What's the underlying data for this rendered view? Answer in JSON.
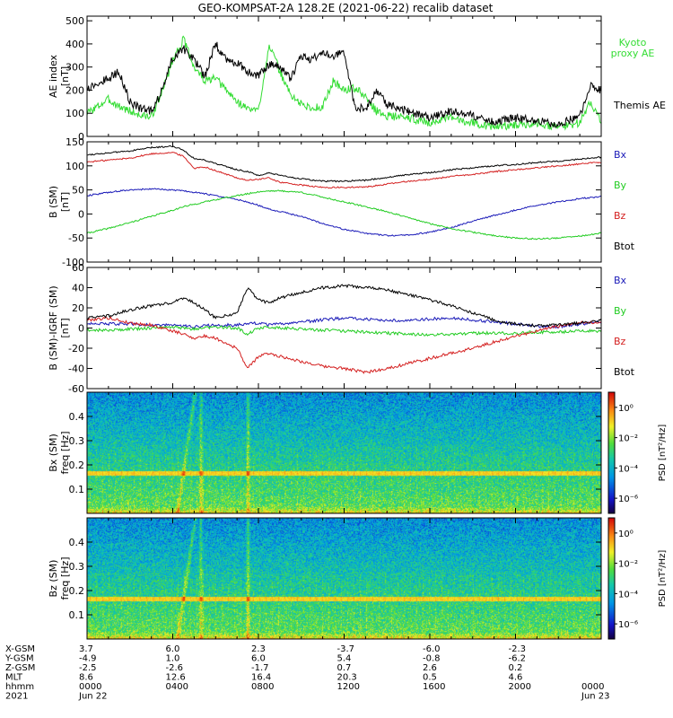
{
  "title": "GEO-KOMPSAT-2A 128.2E (2021-06-22) recalib dataset",
  "colors": {
    "black": "#000000",
    "red": "#d42020",
    "green": "#22cc22",
    "blue": "#1a1ab8",
    "kyoto_green": "#33dd33"
  },
  "chart_data": [
    {
      "type": "line",
      "panel": "ae",
      "ylabel": "AE index",
      "yunit": "[nT]",
      "ylim": [
        0,
        520
      ],
      "yticks": [
        "0",
        "100",
        "200",
        "300",
        "400",
        "500"
      ],
      "ytick_values": [
        0,
        100,
        200,
        300,
        400,
        500
      ],
      "x_hours": [
        0,
        1,
        1.5,
        2,
        2.5,
        3,
        3.5,
        4,
        4.5,
        5,
        5.5,
        6,
        6.5,
        7,
        7.5,
        8,
        8.5,
        9,
        9.5,
        10,
        10.5,
        11,
        11.5,
        12,
        12.5,
        13,
        13.5,
        14,
        15,
        16,
        17,
        18,
        19,
        20,
        21,
        22,
        23,
        23.5,
        24
      ],
      "series": [
        {
          "name": "Kyoto proxy AE",
          "color_key": "kyoto_green",
          "values": [
            100,
            160,
            130,
            110,
            90,
            85,
            190,
            330,
            420,
            300,
            240,
            250,
            200,
            150,
            120,
            110,
            400,
            280,
            180,
            140,
            120,
            130,
            240,
            200,
            210,
            170,
            110,
            90,
            80,
            60,
            80,
            60,
            40,
            50,
            60,
            40,
            60,
            150,
            70
          ]
        },
        {
          "name": "Themis AE",
          "color_key": "black",
          "values": [
            210,
            250,
            280,
            150,
            120,
            110,
            200,
            340,
            380,
            330,
            260,
            400,
            330,
            320,
            280,
            260,
            310,
            300,
            250,
            350,
            330,
            370,
            350,
            360,
            130,
            120,
            200,
            140,
            110,
            80,
            110,
            90,
            60,
            80,
            70,
            50,
            90,
            220,
            200
          ]
        }
      ]
    },
    {
      "type": "line",
      "panel": "b",
      "ylabel": "B (SM)",
      "yunit": "[nT]",
      "ylim": [
        -100,
        150
      ],
      "yticks": [
        "-100",
        "-50",
        "0",
        "50",
        "100",
        "150"
      ],
      "ytick_values": [
        -100,
        -50,
        0,
        50,
        100,
        150
      ],
      "x_hours": [
        0,
        1,
        2,
        3,
        4,
        4.5,
        5,
        5.5,
        6,
        7,
        7.5,
        8,
        8.5,
        9,
        10,
        11,
        12,
        13,
        14,
        15,
        16,
        17,
        18,
        19,
        20,
        21,
        22,
        23,
        24
      ],
      "series": [
        {
          "name": "Bx",
          "color_key": "blue",
          "values": [
            38,
            45,
            50,
            52,
            50,
            48,
            45,
            42,
            38,
            30,
            25,
            18,
            10,
            5,
            -5,
            -20,
            -32,
            -40,
            -45,
            -44,
            -38,
            -28,
            -15,
            -3,
            8,
            18,
            25,
            32,
            36
          ]
        },
        {
          "name": "By",
          "color_key": "green",
          "values": [
            -40,
            -30,
            -18,
            -5,
            8,
            15,
            20,
            25,
            30,
            38,
            42,
            46,
            48,
            48,
            45,
            35,
            25,
            15,
            5,
            -8,
            -20,
            -30,
            -38,
            -45,
            -50,
            -52,
            -50,
            -46,
            -40
          ]
        },
        {
          "name": "Bz",
          "color_key": "red",
          "values": [
            108,
            112,
            116,
            125,
            128,
            120,
            95,
            98,
            90,
            75,
            70,
            72,
            75,
            66,
            60,
            55,
            55,
            56,
            62,
            68,
            72,
            78,
            82,
            88,
            92,
            96,
            100,
            104,
            108
          ]
        },
        {
          "name": "Btot",
          "color_key": "black",
          "values": [
            123,
            127,
            131,
            138,
            141,
            133,
            115,
            112,
            105,
            92,
            88,
            80,
            85,
            80,
            73,
            68,
            68,
            70,
            76,
            82,
            86,
            92,
            96,
            100,
            103,
            107,
            110,
            114,
            118
          ]
        }
      ]
    },
    {
      "type": "line",
      "panel": "db",
      "ylabel": "B (SM)-IGRF (SM)",
      "yunit": "[nT]",
      "ylim": [
        -60,
        60
      ],
      "yticks": [
        "-60",
        "-40",
        "-20",
        "0",
        "20",
        "40",
        "60"
      ],
      "ytick_values": [
        -60,
        -40,
        -20,
        0,
        20,
        40,
        60
      ],
      "x_hours": [
        0,
        1,
        2,
        3,
        4,
        4.5,
        5,
        5.5,
        6,
        7,
        7.5,
        8,
        8.5,
        9,
        10,
        11,
        12,
        13,
        14,
        15,
        16,
        17,
        18,
        19,
        20,
        21,
        22,
        23,
        24
      ],
      "series": [
        {
          "name": "Bx",
          "color_key": "blue",
          "values": [
            5,
            4,
            4,
            3,
            3,
            2,
            1,
            2,
            3,
            3,
            4,
            5,
            3,
            4,
            6,
            8,
            10,
            9,
            7,
            8,
            9,
            10,
            8,
            6,
            4,
            2,
            1,
            4,
            6
          ]
        },
        {
          "name": "By",
          "color_key": "green",
          "values": [
            -2,
            -2,
            -1,
            0,
            1,
            0,
            -1,
            0,
            1,
            0,
            -6,
            0,
            1,
            0,
            -1,
            -2,
            -3,
            -4,
            -5,
            -6,
            -7,
            -6,
            -5,
            -5,
            -5,
            -4,
            -4,
            -3,
            -3
          ]
        },
        {
          "name": "Bz",
          "color_key": "red",
          "values": [
            8,
            10,
            5,
            3,
            -3,
            -6,
            -10,
            -8,
            -10,
            -20,
            -40,
            -28,
            -25,
            -28,
            -33,
            -38,
            -40,
            -44,
            -40,
            -35,
            -30,
            -25,
            -20,
            -14,
            -8,
            -3,
            2,
            5,
            6
          ]
        },
        {
          "name": "Btot",
          "color_key": "black",
          "values": [
            10,
            12,
            18,
            22,
            25,
            30,
            25,
            18,
            10,
            15,
            40,
            28,
            25,
            30,
            35,
            40,
            42,
            40,
            38,
            33,
            28,
            22,
            15,
            8,
            4,
            2,
            3,
            5,
            8
          ]
        }
      ]
    },
    {
      "type": "heatmap",
      "panel": "spec_bx",
      "ylabel": "Bx (SM)",
      "yunit": "freq [Hz]",
      "ylim": [
        0,
        0.5
      ],
      "yticks": [
        "0.1",
        "0.2",
        "0.3",
        "0.4"
      ],
      "ytick_values": [
        0.1,
        0.2,
        0.3,
        0.4
      ],
      "colorbar_label": "PSD [nT²/Hz]",
      "colorbar_ticks": [
        "10⁰",
        "10⁻²",
        "10⁻⁴",
        "10⁻⁶"
      ],
      "colorbar_exponents": [
        0,
        -2,
        -4,
        -6
      ],
      "colorbar_range": [
        -7,
        1
      ],
      "line_freq": 0.165,
      "event_hours": [
        4.2,
        5.3,
        7.5
      ],
      "seed": 11
    },
    {
      "type": "heatmap",
      "panel": "spec_bz",
      "ylabel": "Bz (SM)",
      "yunit": "freq [Hz]",
      "ylim": [
        0,
        0.5
      ],
      "yticks": [
        "0.1",
        "0.2",
        "0.3",
        "0.4"
      ],
      "ytick_values": [
        0.1,
        0.2,
        0.3,
        0.4
      ],
      "colorbar_label": "PSD [nT²/Hz]",
      "colorbar_ticks": [
        "10⁰",
        "10⁻²",
        "10⁻⁴",
        "10⁻⁶"
      ],
      "colorbar_exponents": [
        0,
        -2,
        -4,
        -6
      ],
      "colorbar_range": [
        -7,
        1
      ],
      "line_freq": 0.165,
      "event_hours": [
        4.2,
        5.3,
        7.5
      ],
      "seed": 29
    }
  ],
  "legends": {
    "ae": [
      "Kyoto proxy AE",
      "Themis AE"
    ],
    "b": [
      "Bx",
      "By",
      "Bz",
      "Btot"
    ],
    "db": [
      "Bx",
      "By",
      "Bz",
      "Btot"
    ]
  },
  "x_axis": {
    "range_hours": [
      0,
      24
    ],
    "major_tick_hours": [
      0,
      4,
      8,
      12,
      16,
      20,
      24
    ],
    "rows": [
      {
        "name": "X-GSM",
        "values": [
          "3.7",
          "6.0",
          "2.3",
          "-3.7",
          "-6.0",
          "-2.3",
          ""
        ]
      },
      {
        "name": "Y-GSM",
        "values": [
          "-4.9",
          "1.0",
          "6.0",
          "5.4",
          "-0.8",
          "-6.2",
          ""
        ]
      },
      {
        "name": "Z-GSM",
        "values": [
          "-2.5",
          "-2.6",
          "-1.7",
          "0.7",
          "2.6",
          "0.2",
          ""
        ]
      },
      {
        "name": "MLT",
        "values": [
          "8.6",
          "12.6",
          "16.4",
          "20.3",
          "0.5",
          "4.6",
          ""
        ]
      },
      {
        "name": "hhmm",
        "values": [
          "0000",
          "0400",
          "0800",
          "1200",
          "1600",
          "2000",
          "0000"
        ]
      },
      {
        "name": "2021",
        "values": [
          "Jun 22",
          "",
          "",
          "",
          "",
          "",
          "Jun 23"
        ]
      }
    ]
  }
}
